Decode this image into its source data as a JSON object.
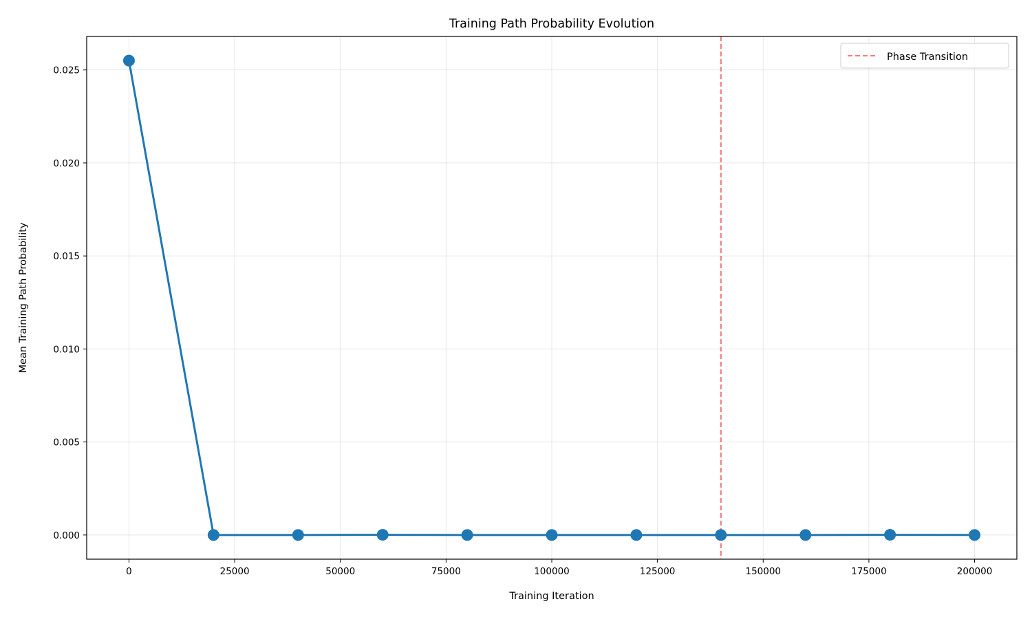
{
  "chart_data": {
    "type": "line",
    "title": "Training Path Probability Evolution",
    "xlabel": "Training Iteration",
    "ylabel": "Mean Training Path Probability",
    "xlim": [
      -10000,
      210000
    ],
    "ylim": [
      -0.0013,
      0.0268
    ],
    "xticks": [
      0,
      25000,
      50000,
      75000,
      100000,
      125000,
      150000,
      175000,
      200000
    ],
    "xtick_labels": [
      "0",
      "25000",
      "50000",
      "75000",
      "100000",
      "125000",
      "150000",
      "175000",
      "200000"
    ],
    "yticks": [
      0.0,
      0.005,
      0.01,
      0.015,
      0.02,
      0.025
    ],
    "ytick_labels": [
      "0.000",
      "0.005",
      "0.010",
      "0.015",
      "0.020",
      "0.025"
    ],
    "grid": true,
    "legend_position": "top-right",
    "series": [
      {
        "color": "#1f77b4",
        "marker": "circle",
        "x": [
          0,
          20000,
          40000,
          60000,
          80000,
          100000,
          120000,
          140000,
          160000,
          180000,
          200000
        ],
        "y": [
          0.0255,
          0.0,
          0.0,
          1e-05,
          0.0,
          0.0,
          0.0,
          0.0,
          0.0,
          1e-05,
          0.0
        ]
      }
    ],
    "annotations": [
      {
        "type": "vline",
        "x": 140000,
        "name": "Phase Transition",
        "color": "#f08080",
        "style": "dashed"
      }
    ]
  }
}
